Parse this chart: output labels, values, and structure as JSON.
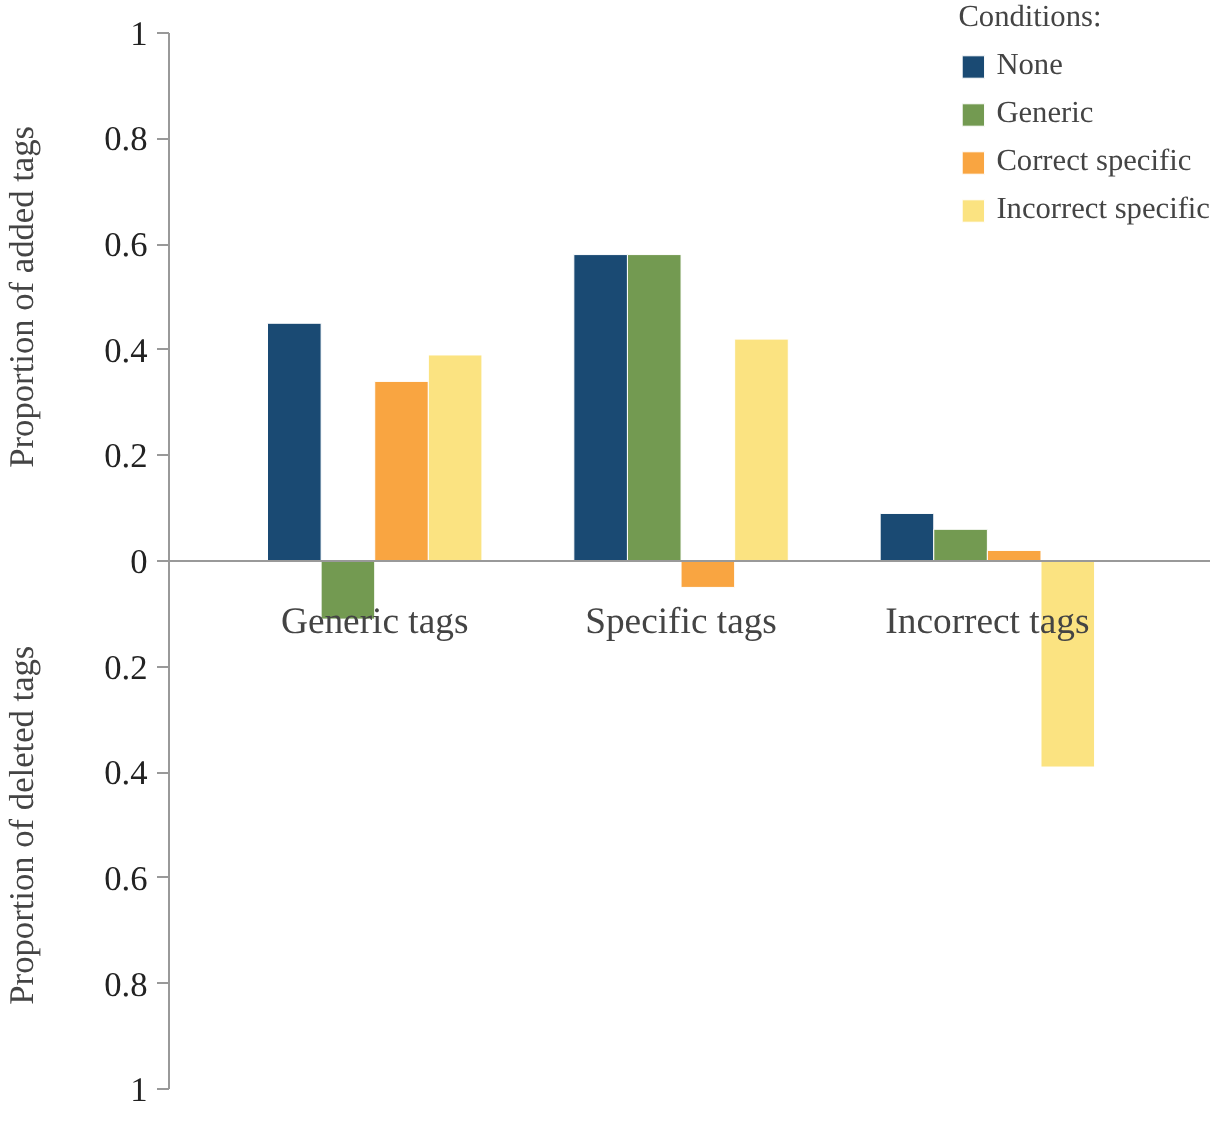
{
  "chart_data": {
    "type": "bar",
    "ylabel": "Proportion of added tags",
    "annotations": [
      "Proportion of deleted tags"
    ],
    "legend_title": "Conditions:",
    "legend": "top right",
    "grid": false,
    "categories": [
      "Generic tags",
      "Specific tags",
      "Incorrect tags"
    ],
    "series": [
      {
        "name": "None",
        "color": "#1a4a73",
        "values": [
          0.45,
          0.58,
          0.09
        ]
      },
      {
        "name": "Generic",
        "color": "#739a51",
        "values": [
          -0.11,
          0.58,
          0.06
        ]
      },
      {
        "name": "Correct specific",
        "color": "#f9a541",
        "values": [
          0.34,
          -0.05,
          0.02
        ]
      },
      {
        "name": "Incorrect specific",
        "color": "#fbe381",
        "values": [
          0.39,
          0.42,
          -0.39
        ]
      }
    ],
    "ylim": [
      -1,
      1
    ],
    "yticks": [
      {
        "value": -1,
        "label": "1"
      },
      {
        "value": -0.8,
        "label": "0.8"
      },
      {
        "value": -0.6,
        "label": "0.6"
      },
      {
        "value": -0.4,
        "label": "0.4"
      },
      {
        "value": -0.2,
        "label": "0.2"
      },
      0,
      0.2,
      0.4,
      0.6,
      0.8,
      1
    ]
  }
}
